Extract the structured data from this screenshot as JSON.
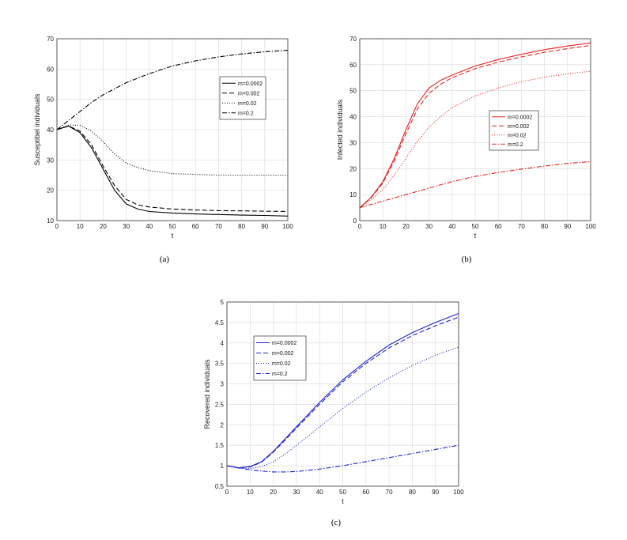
{
  "chart_data": [
    {
      "type": "line",
      "panel_label": "(a)",
      "title": "",
      "xlabel": "t",
      "ylabel": "Susceptibel individuals",
      "xlim": [
        0,
        100
      ],
      "ylim": [
        10,
        70
      ],
      "xticks": [
        0,
        10,
        20,
        30,
        40,
        50,
        60,
        70,
        80,
        90,
        100
      ],
      "yticks": [
        10,
        20,
        30,
        40,
        50,
        60,
        70
      ],
      "grid": true,
      "legend_position": "right",
      "color": "#000000",
      "series": [
        {
          "name": "m=0.0002",
          "dash": "solid",
          "x": [
            0,
            5,
            10,
            15,
            20,
            25,
            30,
            35,
            40,
            50,
            60,
            70,
            80,
            90,
            100
          ],
          "y": [
            40,
            41.2,
            39,
            34,
            27,
            20,
            15.5,
            13.8,
            13,
            12.5,
            12.2,
            12,
            11.8,
            11.7,
            11.5
          ]
        },
        {
          "name": "m=0.002",
          "dash": "dashed",
          "x": [
            0,
            5,
            10,
            15,
            20,
            25,
            30,
            35,
            40,
            50,
            60,
            70,
            80,
            90,
            100
          ],
          "y": [
            40,
            41.2,
            39.5,
            35,
            28,
            21.5,
            17,
            15.2,
            14.5,
            13.8,
            13.5,
            13.3,
            13.2,
            13.1,
            13
          ]
        },
        {
          "name": "m=0.02",
          "dash": "dotted",
          "x": [
            0,
            5,
            10,
            15,
            20,
            25,
            30,
            35,
            40,
            50,
            60,
            70,
            80,
            90,
            100
          ],
          "y": [
            40,
            41.5,
            41.5,
            39.5,
            36,
            32,
            29,
            27.5,
            26.5,
            25.5,
            25.2,
            25,
            25,
            25,
            25
          ]
        },
        {
          "name": "m=0.2",
          "dash": "dashdot",
          "x": [
            0,
            5,
            10,
            15,
            20,
            30,
            40,
            50,
            60,
            70,
            80,
            90,
            100
          ],
          "y": [
            40,
            43,
            46,
            49,
            51.5,
            55.5,
            58.5,
            61,
            62.7,
            64,
            65,
            65.7,
            66.2
          ]
        }
      ]
    },
    {
      "type": "line",
      "panel_label": "(b)",
      "title": "",
      "xlabel": "t",
      "ylabel": "Infected individuals",
      "xlim": [
        0,
        100
      ],
      "ylim": [
        0,
        70
      ],
      "xticks": [
        0,
        10,
        20,
        30,
        40,
        50,
        60,
        70,
        80,
        90,
        100
      ],
      "yticks": [
        0,
        10,
        20,
        30,
        40,
        50,
        60,
        70
      ],
      "grid": true,
      "legend_position": "right",
      "color": "#e8231f",
      "series": [
        {
          "name": "m=0.0002",
          "dash": "solid",
          "x": [
            0,
            5,
            10,
            15,
            20,
            25,
            30,
            35,
            40,
            50,
            60,
            70,
            80,
            90,
            100
          ],
          "y": [
            5,
            9,
            15,
            24,
            35,
            45,
            51,
            54,
            56,
            59.5,
            62,
            64,
            65.8,
            67.2,
            68.4
          ]
        },
        {
          "name": "m=0.002",
          "dash": "dashed",
          "x": [
            0,
            5,
            10,
            15,
            20,
            25,
            30,
            35,
            40,
            50,
            60,
            70,
            80,
            90,
            100
          ],
          "y": [
            5,
            8.8,
            14.5,
            23,
            33.5,
            43,
            49,
            52.5,
            55,
            58.5,
            61,
            63,
            64.8,
            66.2,
            67.4
          ]
        },
        {
          "name": "m=0.02",
          "dash": "dotted",
          "x": [
            0,
            5,
            10,
            15,
            20,
            25,
            30,
            35,
            40,
            50,
            60,
            70,
            80,
            90,
            100
          ],
          "y": [
            5,
            8,
            12,
            17.5,
            24,
            30.5,
            36,
            40,
            43.5,
            48,
            51,
            53.5,
            55.2,
            56.5,
            57.5
          ]
        },
        {
          "name": "m=0.2",
          "dash": "dashdot",
          "x": [
            0,
            10,
            20,
            30,
            40,
            50,
            60,
            70,
            80,
            90,
            100
          ],
          "y": [
            5,
            7.5,
            10,
            12.5,
            15,
            17,
            18.5,
            19.8,
            21,
            22,
            22.7
          ]
        }
      ]
    },
    {
      "type": "line",
      "panel_label": "(c)",
      "title": "",
      "xlabel": "t",
      "ylabel": "Recovered individuals",
      "xlim": [
        0,
        100
      ],
      "ylim": [
        0.5,
        5
      ],
      "xticks": [
        0,
        10,
        20,
        30,
        40,
        50,
        60,
        70,
        80,
        90,
        100
      ],
      "yticks": [
        0.5,
        1,
        1.5,
        2,
        2.5,
        3,
        3.5,
        4,
        4.5,
        5
      ],
      "grid": true,
      "legend_position": "top-left",
      "color": "#1f23d6",
      "series": [
        {
          "name": "m=0.0002",
          "dash": "solid",
          "x": [
            0,
            5,
            10,
            15,
            20,
            25,
            30,
            35,
            40,
            50,
            60,
            70,
            80,
            90,
            100
          ],
          "y": [
            1,
            0.95,
            0.98,
            1.1,
            1.35,
            1.65,
            1.95,
            2.25,
            2.55,
            3.1,
            3.55,
            3.95,
            4.25,
            4.5,
            4.72
          ]
        },
        {
          "name": "m=0.002",
          "dash": "dashed",
          "x": [
            0,
            5,
            10,
            15,
            20,
            25,
            30,
            35,
            40,
            50,
            60,
            70,
            80,
            90,
            100
          ],
          "y": [
            1,
            0.95,
            0.97,
            1.09,
            1.33,
            1.62,
            1.92,
            2.21,
            2.5,
            3.05,
            3.5,
            3.88,
            4.18,
            4.42,
            4.63
          ]
        },
        {
          "name": "m=0.02",
          "dash": "dotted",
          "x": [
            0,
            5,
            10,
            15,
            20,
            25,
            30,
            35,
            40,
            50,
            60,
            70,
            80,
            90,
            100
          ],
          "y": [
            1,
            0.94,
            0.93,
            0.98,
            1.1,
            1.28,
            1.5,
            1.72,
            1.95,
            2.4,
            2.8,
            3.15,
            3.45,
            3.7,
            3.9
          ]
        },
        {
          "name": "m=0.2",
          "dash": "dashdot",
          "x": [
            0,
            5,
            10,
            15,
            20,
            25,
            30,
            40,
            50,
            60,
            70,
            80,
            90,
            100
          ],
          "y": [
            1,
            0.95,
            0.9,
            0.87,
            0.85,
            0.85,
            0.86,
            0.92,
            1.0,
            1.1,
            1.2,
            1.3,
            1.4,
            1.5
          ]
        }
      ]
    }
  ]
}
